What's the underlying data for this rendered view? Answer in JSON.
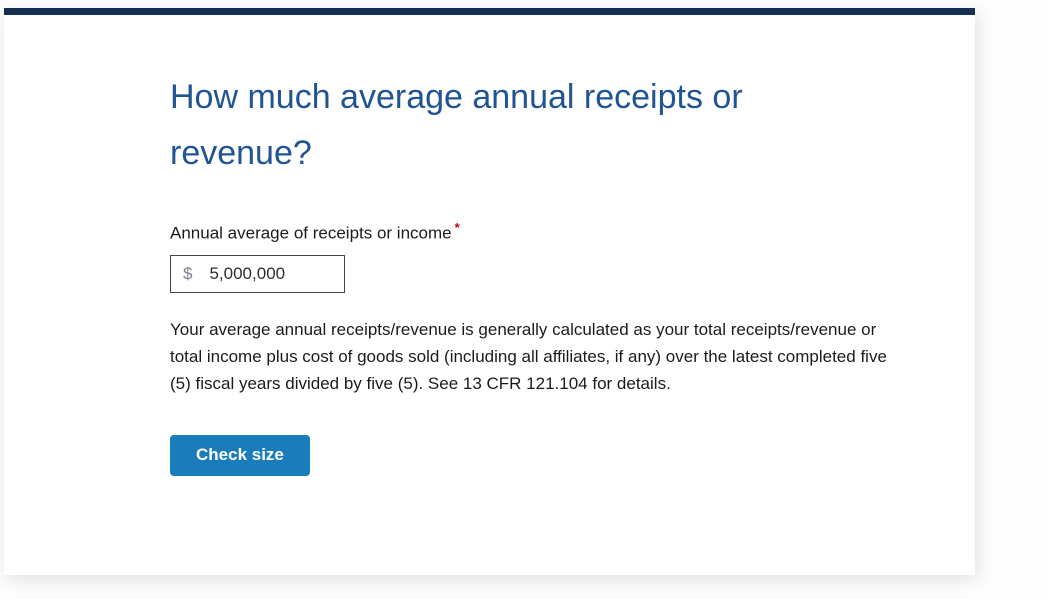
{
  "window": {
    "background": "#fdfdfd",
    "card_background": "#ffffff",
    "top_bar_color": "#162e51"
  },
  "heading": {
    "text": "How much average annual receipts or revenue?",
    "color": "#205493"
  },
  "form": {
    "field_label": "Annual average of receipts or income",
    "required_marker": "*",
    "required_marker_color": "#b50909",
    "currency_prefix": "$",
    "value": "5,000,000",
    "help_text": "Your average annual receipts/revenue is generally calculated as your total receipts/revenue or total income plus cost of goods sold (including all affiliates, if any) over the latest completed five (5) fiscal years divided by five (5). See 13 CFR 121.104 for details."
  },
  "actions": {
    "check_size_label": "Check size",
    "button_background": "#1a7cba",
    "button_text_color": "#ffffff"
  }
}
